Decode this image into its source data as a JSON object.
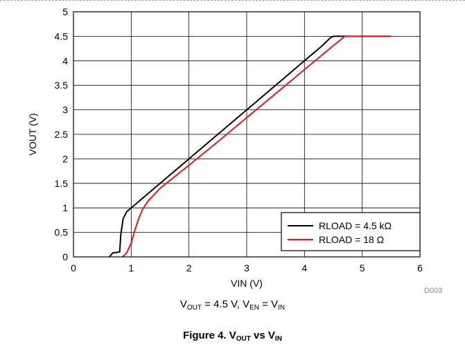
{
  "chart_data": {
    "type": "line",
    "xlabel": "VIN (V)",
    "ylabel": "VOUT (V)",
    "xlim": [
      0,
      6
    ],
    "ylim": [
      0,
      5
    ],
    "xticks": [
      "0",
      "1",
      "2",
      "3",
      "4",
      "5",
      "6"
    ],
    "yticks": [
      "0",
      "0.5",
      "1",
      "1.5",
      "2",
      "2.5",
      "3",
      "3.5",
      "4",
      "4.5",
      "5"
    ],
    "grid": true,
    "legend_position": "bottom-right",
    "series": [
      {
        "name": "RLOAD = 4.5 kΩ",
        "color": "#000000",
        "x": [
          0.62,
          0.68,
          0.8,
          0.82,
          0.86,
          0.92,
          1.0,
          1.5,
          2.0,
          2.5,
          3.0,
          3.5,
          4.0,
          4.3,
          4.45,
          4.5,
          5.5
        ],
        "y": [
          0.0,
          0.08,
          0.1,
          0.45,
          0.78,
          0.92,
          1.0,
          1.5,
          2.0,
          2.5,
          3.0,
          3.5,
          4.0,
          4.3,
          4.47,
          4.5,
          4.5
        ]
      },
      {
        "name": "RLOAD = 18 Ω",
        "color": "#e8141b",
        "x": [
          0.85,
          0.92,
          1.0,
          1.05,
          1.12,
          1.2,
          1.3,
          1.5,
          2.0,
          2.5,
          3.0,
          3.5,
          4.0,
          4.5,
          4.7,
          5.5
        ],
        "y": [
          0.0,
          0.08,
          0.28,
          0.5,
          0.75,
          0.98,
          1.15,
          1.4,
          1.87,
          2.35,
          2.84,
          3.33,
          3.82,
          4.31,
          4.5,
          4.5
        ]
      }
    ]
  },
  "condition": {
    "v1": "V",
    "v1_sub": "OUT",
    "eq1": " = 4.5 V, ",
    "v2": "V",
    "v2_sub": "EN",
    "eq2": " = ",
    "v3": "V",
    "v3_sub": "IN"
  },
  "caption": {
    "prefix": "Figure 4. ",
    "v1": "V",
    "v1_sub": "OUT",
    "vs": " vs ",
    "v2": "V",
    "v2_sub": "IN"
  },
  "code_label": "D003"
}
